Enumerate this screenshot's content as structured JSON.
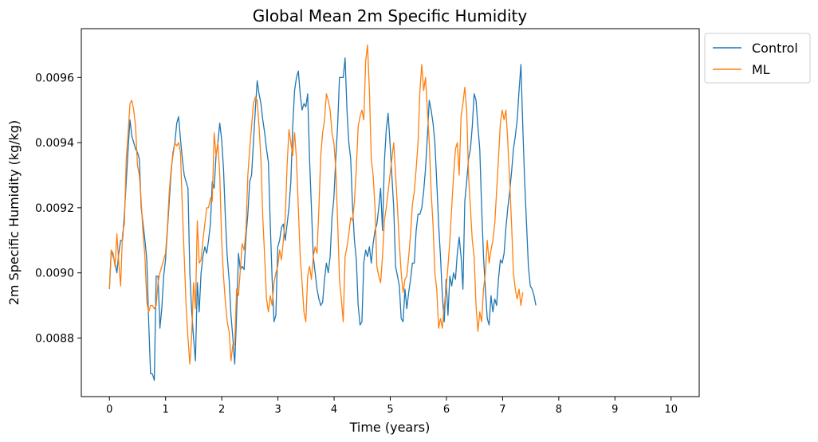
{
  "chart_data": {
    "type": "line",
    "title": "Global Mean 2m Specific Humidity",
    "xlabel": "Time (years)",
    "ylabel": "2m Specific Humidity (kg/kg)",
    "xlim": [
      -0.5,
      10.5
    ],
    "ylim": [
      0.00862,
      0.00975
    ],
    "xticks": [
      0,
      1,
      2,
      3,
      4,
      5,
      6,
      7,
      8,
      9,
      10
    ],
    "yticks": [
      0.0088,
      0.009,
      0.0092,
      0.0094,
      0.0096
    ],
    "ytick_labels": [
      "0.0088",
      "0.0090",
      "0.0092",
      "0.0094",
      "0.0096"
    ],
    "grid": false,
    "legend_placement": "outside upper right",
    "x_step": 0.0333,
    "series": [
      {
        "name": "Control",
        "color": "#1f77b4",
        "values": [
          0.00895,
          0.00907,
          0.00905,
          0.00903,
          0.009,
          0.00906,
          0.0091,
          0.0091,
          0.00918,
          0.00928,
          0.00938,
          0.00947,
          0.00942,
          0.0094,
          0.00938,
          0.00937,
          0.00935,
          0.0092,
          0.00915,
          0.0091,
          0.00904,
          0.00885,
          0.00869,
          0.00869,
          0.00867,
          0.00899,
          0.00899,
          0.00883,
          0.00889,
          0.00899,
          0.00904,
          0.00913,
          0.00922,
          0.00931,
          0.00937,
          0.0094,
          0.00946,
          0.00948,
          0.00941,
          0.00935,
          0.0093,
          0.00928,
          0.00926,
          0.009,
          0.00888,
          0.0088,
          0.00873,
          0.00897,
          0.00888,
          0.009,
          0.00905,
          0.00908,
          0.00906,
          0.0091,
          0.00915,
          0.00928,
          0.00926,
          0.00936,
          0.0094,
          0.00946,
          0.00941,
          0.00932,
          0.00917,
          0.00905,
          0.00898,
          0.00887,
          0.0088,
          0.00872,
          0.00887,
          0.00906,
          0.00901,
          0.00902,
          0.00901,
          0.00911,
          0.00918,
          0.00928,
          0.0093,
          0.0094,
          0.0095,
          0.00959,
          0.00955,
          0.00952,
          0.00947,
          0.00943,
          0.00938,
          0.00934,
          0.00915,
          0.00898,
          0.00885,
          0.00887,
          0.00908,
          0.0091,
          0.00914,
          0.00915,
          0.0091,
          0.00915,
          0.0092,
          0.00928,
          0.00945,
          0.00956,
          0.0096,
          0.00962,
          0.00955,
          0.0095,
          0.00952,
          0.00951,
          0.00955,
          0.00935,
          0.0092,
          0.00905,
          0.009,
          0.00895,
          0.00892,
          0.0089,
          0.00891,
          0.00898,
          0.00903,
          0.009,
          0.00905,
          0.00917,
          0.00923,
          0.00935,
          0.00945,
          0.0096,
          0.0096,
          0.0096,
          0.00966,
          0.0095,
          0.0094,
          0.00935,
          0.0092,
          0.0091,
          0.00904,
          0.0089,
          0.00884,
          0.00885,
          0.00903,
          0.00907,
          0.00905,
          0.00908,
          0.00903,
          0.00909,
          0.00913,
          0.00915,
          0.0092,
          0.00926,
          0.00913,
          0.00934,
          0.00944,
          0.00949,
          0.0094,
          0.0093,
          0.0092,
          0.00902,
          0.00899,
          0.00896,
          0.00886,
          0.00885,
          0.00895,
          0.00889,
          0.00894,
          0.00898,
          0.00903,
          0.00903,
          0.00913,
          0.00918,
          0.00918,
          0.0092,
          0.00925,
          0.00932,
          0.00942,
          0.00953,
          0.0095,
          0.00946,
          0.0094,
          0.00928,
          0.00915,
          0.00905,
          0.00893,
          0.00885,
          0.00898,
          0.00887,
          0.00899,
          0.00896,
          0.009,
          0.00898,
          0.00906,
          0.00911,
          0.00905,
          0.00895,
          0.00922,
          0.00928,
          0.00935,
          0.00938,
          0.00945,
          0.00955,
          0.00953,
          0.00945,
          0.00938,
          0.0092,
          0.00905,
          0.00895,
          0.00886,
          0.00884,
          0.00893,
          0.00888,
          0.00892,
          0.0089,
          0.00898,
          0.00904,
          0.00903,
          0.00906,
          0.00914,
          0.0092,
          0.00925,
          0.00931,
          0.00938,
          0.00942,
          0.00947,
          0.00956,
          0.00964,
          0.00945,
          0.00928,
          0.00915,
          0.00902,
          0.00896,
          0.00895,
          0.00893,
          0.0089
        ]
      },
      {
        "name": "ML",
        "color": "#ff7f0e",
        "values": [
          0.00895,
          0.00907,
          0.00906,
          0.00902,
          0.00912,
          0.00903,
          0.00896,
          0.00912,
          0.00915,
          0.00935,
          0.00943,
          0.00952,
          0.00953,
          0.0095,
          0.00945,
          0.00933,
          0.0093,
          0.00922,
          0.00912,
          0.00905,
          0.00891,
          0.00888,
          0.0089,
          0.0089,
          0.00889,
          0.0089,
          0.00897,
          0.009,
          0.00902,
          0.00904,
          0.00906,
          0.00914,
          0.00925,
          0.00932,
          0.00936,
          0.0094,
          0.00939,
          0.0094,
          0.00937,
          0.0092,
          0.00905,
          0.0089,
          0.0088,
          0.00872,
          0.00881,
          0.00897,
          0.00889,
          0.00916,
          0.00903,
          0.00904,
          0.0091,
          0.00915,
          0.0092,
          0.0092,
          0.00923,
          0.00922,
          0.00943,
          0.00936,
          0.0094,
          0.0093,
          0.0091,
          0.00899,
          0.00891,
          0.00885,
          0.00882,
          0.00873,
          0.00878,
          0.00878,
          0.00895,
          0.00893,
          0.00901,
          0.00909,
          0.00907,
          0.00913,
          0.0093,
          0.00938,
          0.00945,
          0.00952,
          0.00954,
          0.00953,
          0.00945,
          0.00935,
          0.00917,
          0.00905,
          0.00892,
          0.00888,
          0.00893,
          0.0089,
          0.00897,
          0.009,
          0.00902,
          0.00907,
          0.00904,
          0.0091,
          0.00917,
          0.00933,
          0.00944,
          0.0094,
          0.00936,
          0.00943,
          0.00935,
          0.0092,
          0.00905,
          0.00897,
          0.00888,
          0.00885,
          0.00899,
          0.00902,
          0.00898,
          0.00905,
          0.00908,
          0.00906,
          0.0092,
          0.00936,
          0.00943,
          0.00947,
          0.00955,
          0.00953,
          0.0095,
          0.00943,
          0.0094,
          0.00932,
          0.00916,
          0.00898,
          0.00892,
          0.00885,
          0.00905,
          0.00908,
          0.00912,
          0.00917,
          0.00916,
          0.00922,
          0.00932,
          0.00945,
          0.00948,
          0.0095,
          0.00947,
          0.00965,
          0.0097,
          0.00956,
          0.00935,
          0.0093,
          0.0092,
          0.00902,
          0.00899,
          0.00897,
          0.00905,
          0.00916,
          0.0092,
          0.00925,
          0.0093,
          0.00935,
          0.0094,
          0.0093,
          0.0092,
          0.00909,
          0.009,
          0.00894,
          0.00898,
          0.00899,
          0.00905,
          0.00912,
          0.00921,
          0.00925,
          0.00932,
          0.0094,
          0.00956,
          0.00964,
          0.00956,
          0.0096,
          0.0095,
          0.0094,
          0.00925,
          0.00915,
          0.009,
          0.00895,
          0.00883,
          0.00886,
          0.00883,
          0.0089,
          0.00895,
          0.00902,
          0.0091,
          0.0092,
          0.0093,
          0.00938,
          0.0094,
          0.0093,
          0.00948,
          0.00952,
          0.00957,
          0.0095,
          0.0093,
          0.0092,
          0.0091,
          0.00905,
          0.0089,
          0.00882,
          0.00888,
          0.00885,
          0.00895,
          0.009,
          0.0091,
          0.00903,
          0.00907,
          0.0091,
          0.00915,
          0.00925,
          0.00935,
          0.00946,
          0.0095,
          0.00947,
          0.0095,
          0.0094,
          0.00928,
          0.00915,
          0.009,
          0.00895,
          0.00892,
          0.00895,
          0.0089,
          0.00894
        ]
      }
    ]
  }
}
